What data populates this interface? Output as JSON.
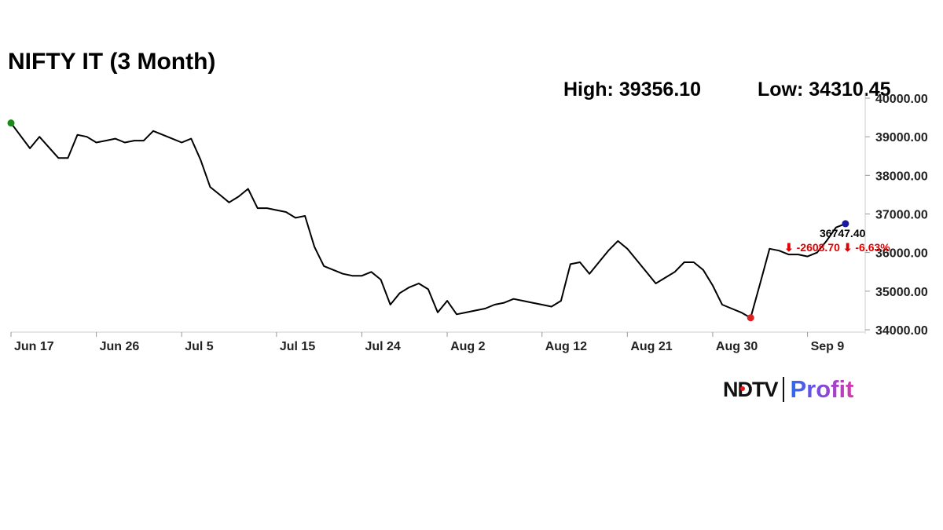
{
  "title": "NIFTY IT (3 Month)",
  "stats": {
    "high_label": "High: 39356.10",
    "low_label": "Low: 34310.45"
  },
  "annotations": {
    "last_value": "36747.40",
    "change": "⬇ -2608.70 ⬇ -6.63%"
  },
  "logo": {
    "brand": "NDTV",
    "product": "Profit"
  },
  "colors": {
    "line": "#000000",
    "start_marker": "#1a8a1a",
    "low_marker": "#e02020",
    "last_marker": "#1a1aa0",
    "change": "#e00000"
  },
  "chart_data": {
    "type": "line",
    "title": "NIFTY IT (3 Month)",
    "xlabel": "",
    "ylabel": "",
    "y_ticks": [
      34000,
      35000,
      36000,
      37000,
      38000,
      39000,
      40000
    ],
    "y_tick_labels": [
      "34000.00",
      "35000.00",
      "36000.00",
      "37000.00",
      "38000.00",
      "39000.00",
      "40000.00"
    ],
    "x_tick_labels": [
      "Jun 17",
      "Jun 26",
      "Jul 5",
      "Jul 15",
      "Jul 24",
      "Aug 2",
      "Aug 12",
      "Aug 21",
      "Aug 30",
      "Sep 9"
    ],
    "x_tick_days": [
      0,
      9,
      18,
      28,
      37,
      46,
      56,
      65,
      74,
      84
    ],
    "ylim": [
      34000,
      40200
    ],
    "xlim": [
      0,
      90
    ],
    "grid": false,
    "series": [
      {
        "x": [
          0,
          2,
          3,
          5,
          6,
          7,
          8,
          9,
          10,
          11,
          12,
          13,
          14,
          15,
          16,
          17,
          18,
          19,
          20,
          21,
          22,
          23,
          24,
          25,
          26,
          27,
          28,
          29,
          30,
          31,
          32,
          33,
          34,
          35,
          36,
          37,
          38,
          39,
          40,
          41,
          42,
          43,
          44,
          45,
          46,
          47,
          48,
          49,
          50,
          51,
          52,
          53,
          54,
          55,
          56,
          57,
          58,
          59,
          60,
          61,
          62,
          63,
          64,
          65,
          66,
          67,
          68,
          69,
          70,
          71,
          72,
          73,
          74,
          75,
          76,
          77,
          78,
          79,
          80,
          81,
          82,
          83,
          84,
          85,
          86,
          87,
          88
        ],
        "y": [
          39356.1,
          38700,
          39000,
          38450,
          38450,
          39050,
          39000,
          38850,
          38900,
          38950,
          38850,
          38900,
          38900,
          39150,
          39050,
          38950,
          38850,
          38950,
          38400,
          37700,
          37500,
          37300,
          37450,
          37650,
          37150,
          37150,
          37100,
          37050,
          36900,
          36950,
          36150,
          35650,
          35550,
          35450,
          35400,
          35400,
          35500,
          35300,
          34650,
          34950,
          35100,
          35200,
          35050,
          34450,
          34750,
          34400,
          34450,
          34500,
          34550,
          34650,
          34700,
          34800,
          34750,
          34700,
          34650,
          34600,
          34750,
          35700,
          35750,
          35450,
          35750,
          36050,
          36300,
          36100,
          35800,
          35500,
          35200,
          35350,
          35500,
          35750,
          35750,
          35550,
          35150,
          34650,
          34550,
          34450,
          34310.45,
          35200,
          36100,
          36050,
          35950,
          35950,
          35900,
          36000,
          36300,
          36650,
          36747.4
        ]
      }
    ],
    "high": 39356.1,
    "low": 34310.45,
    "last": 36747.4,
    "change": -2608.7,
    "change_pct": -6.63
  }
}
